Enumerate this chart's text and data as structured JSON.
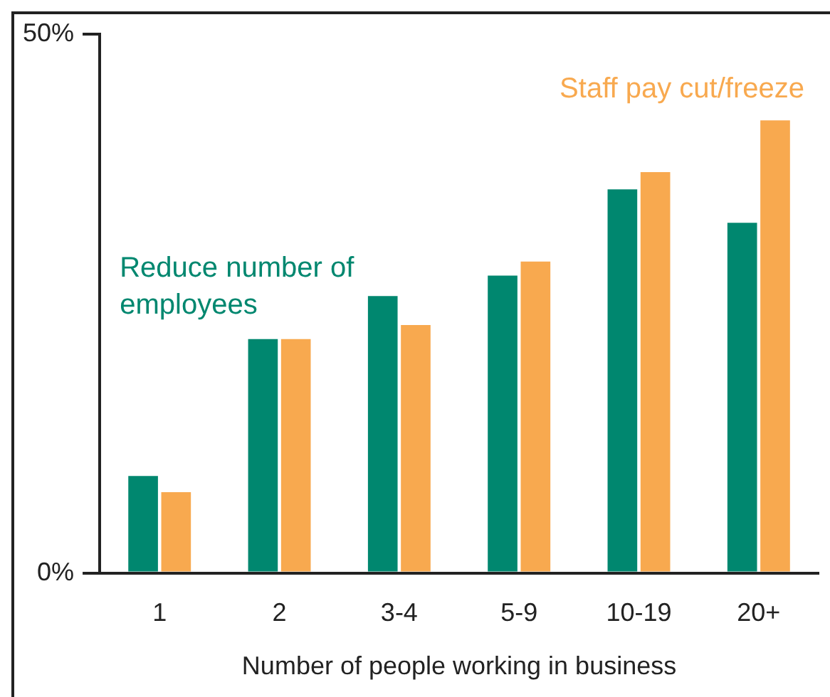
{
  "chart_data": {
    "type": "bar",
    "xlabel": "Number of people working in business",
    "categories": [
      "1",
      "2",
      "3-4",
      "5-9",
      "10-19",
      "20+"
    ],
    "series": [
      {
        "name": "Reduce number of employees",
        "color": "#00876f",
        "values": [
          9,
          21.7,
          25.7,
          27.6,
          35.6,
          32.5
        ]
      },
      {
        "name": "Staff pay cut/freeze",
        "color": "#f8a94f",
        "values": [
          7.5,
          21.7,
          23,
          28.9,
          37.2,
          42
        ]
      }
    ],
    "ylim": [
      0,
      50
    ],
    "yticks": [
      {
        "value": 0,
        "label": "0%"
      },
      {
        "value": 50,
        "label": "50%"
      }
    ],
    "grid": false,
    "legend": false
  }
}
